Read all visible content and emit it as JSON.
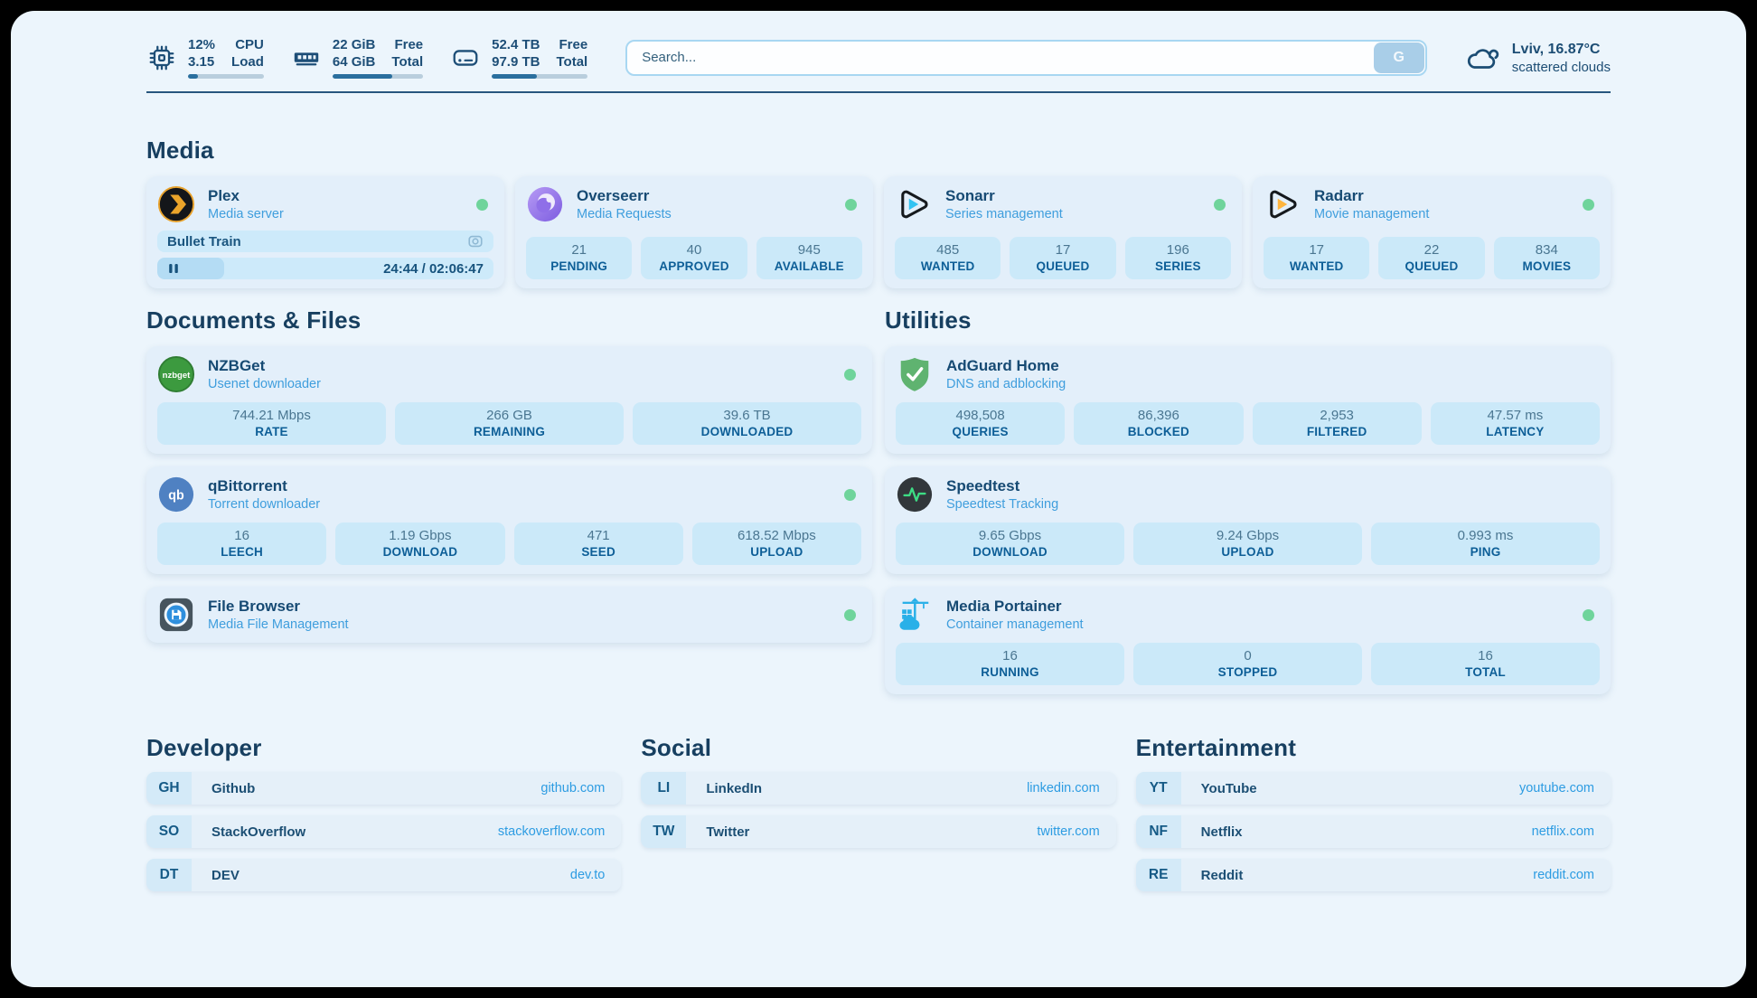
{
  "theme": {
    "page_bg": "#ecf5fc",
    "card_bg": "#e3effa",
    "stat_bg": "#cbe9f9",
    "accent_blue": "#2d9ce2",
    "navy_text": "#164a73",
    "online_green": "#6fd49b"
  },
  "system": {
    "cpu": {
      "icon": "cpu-icon",
      "values": [
        "12%",
        "3.15"
      ],
      "labels": [
        "CPU",
        "Load"
      ],
      "progress_pct": 13
    },
    "memory": {
      "icon": "ram-icon",
      "values": [
        "22 GiB",
        "64 GiB"
      ],
      "labels": [
        "Free",
        "Total"
      ],
      "progress_pct": 66
    },
    "disk": {
      "icon": "disk-icon",
      "values": [
        "52.4 TB",
        "97.9 TB"
      ],
      "labels": [
        "Free",
        "Total"
      ],
      "progress_pct": 47
    }
  },
  "search": {
    "placeholder": "Search...",
    "button_label": "G"
  },
  "weather": {
    "location": "Lviv, 16.87°C",
    "condition": "scattered clouds",
    "icon": "cloud-icon"
  },
  "sections": {
    "media": {
      "title": "Media",
      "apps": [
        {
          "name": "Plex",
          "description": "Media server",
          "online": true,
          "media": {
            "title": "Bullet Train",
            "time": "24:44 / 02:06:47",
            "progress_pct": 20
          }
        },
        {
          "name": "Overseerr",
          "description": "Media Requests",
          "online": true,
          "stats": [
            {
              "value": "21",
              "label": "PENDING"
            },
            {
              "value": "40",
              "label": "APPROVED"
            },
            {
              "value": "945",
              "label": "AVAILABLE"
            }
          ]
        },
        {
          "name": "Sonarr",
          "description": "Series management",
          "online": true,
          "stats": [
            {
              "value": "485",
              "label": "WANTED"
            },
            {
              "value": "17",
              "label": "QUEUED"
            },
            {
              "value": "196",
              "label": "SERIES"
            }
          ]
        },
        {
          "name": "Radarr",
          "description": "Movie management",
          "online": true,
          "stats": [
            {
              "value": "17",
              "label": "WANTED"
            },
            {
              "value": "22",
              "label": "QUEUED"
            },
            {
              "value": "834",
              "label": "MOVIES"
            }
          ]
        }
      ]
    },
    "documents": {
      "title": "Documents & Files",
      "apps": [
        {
          "name": "NZBGet",
          "description": "Usenet downloader",
          "online": true,
          "stats": [
            {
              "value": "744.21 Mbps",
              "label": "RATE"
            },
            {
              "value": "266 GB",
              "label": "REMAINING"
            },
            {
              "value": "39.6 TB",
              "label": "DOWNLOADED"
            }
          ]
        },
        {
          "name": "qBittorrent",
          "description": "Torrent downloader",
          "online": true,
          "stats": [
            {
              "value": "16",
              "label": "LEECH"
            },
            {
              "value": "1.19 Gbps",
              "label": "DOWNLOAD"
            },
            {
              "value": "471",
              "label": "SEED"
            },
            {
              "value": "618.52 Mbps",
              "label": "UPLOAD"
            }
          ]
        },
        {
          "name": "File Browser",
          "description": "Media File Management",
          "online": true,
          "stats": []
        }
      ]
    },
    "utilities": {
      "title": "Utilities",
      "apps": [
        {
          "name": "AdGuard Home",
          "description": "DNS and adblocking",
          "online": false,
          "stats": [
            {
              "value": "498,508",
              "label": "QUERIES"
            },
            {
              "value": "86,396",
              "label": "BLOCKED"
            },
            {
              "value": "2,953",
              "label": "FILTERED"
            },
            {
              "value": "47.57 ms",
              "label": "LATENCY"
            }
          ]
        },
        {
          "name": "Speedtest",
          "description": "Speedtest Tracking",
          "online": false,
          "stats": [
            {
              "value": "9.65 Gbps",
              "label": "DOWNLOAD"
            },
            {
              "value": "9.24 Gbps",
              "label": "UPLOAD"
            },
            {
              "value": "0.993 ms",
              "label": "PING"
            }
          ]
        },
        {
          "name": "Media Portainer",
          "description": "Container management",
          "online": true,
          "stats": [
            {
              "value": "16",
              "label": "RUNNING"
            },
            {
              "value": "0",
              "label": "STOPPED"
            },
            {
              "value": "16",
              "label": "TOTAL"
            }
          ]
        }
      ]
    }
  },
  "bookmarks": {
    "groups": [
      {
        "title": "Developer",
        "links": [
          {
            "abbr": "GH",
            "name": "Github",
            "url": "github.com"
          },
          {
            "abbr": "SO",
            "name": "StackOverflow",
            "url": "stackoverflow.com"
          },
          {
            "abbr": "DT",
            "name": "DEV",
            "url": "dev.to"
          }
        ]
      },
      {
        "title": "Social",
        "links": [
          {
            "abbr": "LI",
            "name": "LinkedIn",
            "url": "linkedin.com"
          },
          {
            "abbr": "TW",
            "name": "Twitter",
            "url": "twitter.com"
          }
        ]
      },
      {
        "title": "Entertainment",
        "links": [
          {
            "abbr": "YT",
            "name": "YouTube",
            "url": "youtube.com"
          },
          {
            "abbr": "NF",
            "name": "Netflix",
            "url": "netflix.com"
          },
          {
            "abbr": "RE",
            "name": "Reddit",
            "url": "reddit.com"
          }
        ]
      }
    ]
  }
}
